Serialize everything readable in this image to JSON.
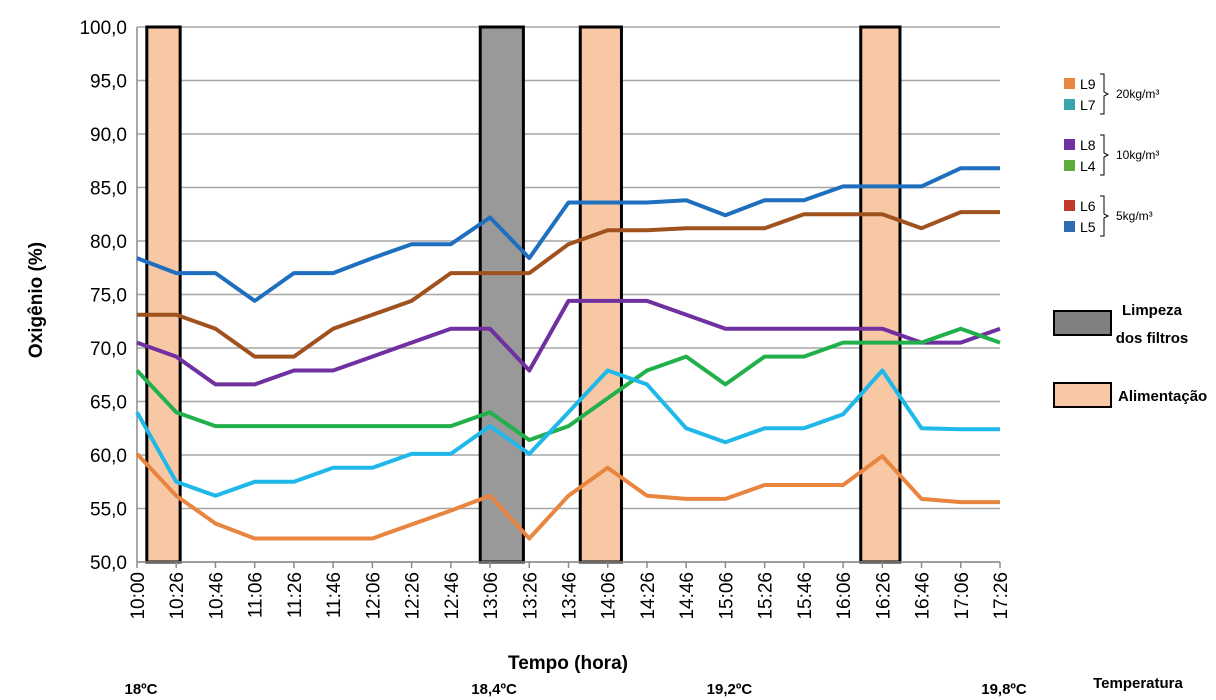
{
  "chart_data": {
    "type": "line",
    "xlabel": "Tempo (hora)",
    "ylabel": "Oxigênio (%)",
    "ylim": [
      50,
      100
    ],
    "ytick_step": 5,
    "ytick_labels": [
      "50,0",
      "55,0",
      "60,0",
      "65,0",
      "70,0",
      "75,0",
      "80,0",
      "85,0",
      "90,0",
      "95,0",
      "100,0"
    ],
    "grid": true,
    "categories": [
      "10:00",
      "10:26",
      "10:46",
      "11:06",
      "11:26",
      "11:46",
      "12:06",
      "12:26",
      "12:46",
      "13:06",
      "13:26",
      "13:46",
      "14:06",
      "14:26",
      "14:46",
      "15:06",
      "15:26",
      "15:46",
      "16:06",
      "16:26",
      "16:46",
      "17:06",
      "17:26"
    ],
    "series": [
      {
        "name": "L5",
        "color": "#1f6fbf",
        "values": [
          78.4,
          77,
          77,
          74.4,
          77,
          77,
          78.4,
          79.7,
          79.7,
          82.2,
          78.4,
          83.6,
          83.6,
          83.6,
          83.8,
          82.4,
          83.8,
          83.8,
          85.1,
          85.1,
          85.1,
          86.8,
          86.8
        ]
      },
      {
        "name": "L6",
        "color": "#a0521e",
        "values": [
          73.1,
          73.1,
          71.8,
          69.2,
          69.2,
          71.8,
          73.1,
          74.4,
          77,
          77,
          77,
          79.7,
          81,
          81,
          81.2,
          81.2,
          81.2,
          82.5,
          82.5,
          82.5,
          81.2,
          82.7,
          82.7
        ]
      },
      {
        "name": "L8",
        "color": "#7030a0",
        "values": [
          70.5,
          69.2,
          66.6,
          66.6,
          67.9,
          67.9,
          69.2,
          70.5,
          71.8,
          71.8,
          67.9,
          74.4,
          74.4,
          74.4,
          73.1,
          71.8,
          71.8,
          71.8,
          71.8,
          71.8,
          70.5,
          70.5,
          71.8
        ]
      },
      {
        "name": "L4",
        "color": "#22b04b",
        "values": [
          67.9,
          64,
          62.7,
          62.7,
          62.7,
          62.7,
          62.7,
          62.7,
          62.7,
          64,
          61.4,
          62.7,
          65.3,
          67.9,
          69.2,
          66.6,
          69.2,
          69.2,
          70.5,
          70.5,
          70.5,
          71.8,
          70.5
        ]
      },
      {
        "name": "L7",
        "color": "#1fb8e8",
        "values": [
          64,
          57.5,
          56.2,
          57.5,
          57.5,
          58.8,
          58.8,
          60.1,
          60.1,
          62.7,
          60.1,
          64,
          67.9,
          66.6,
          62.5,
          61.2,
          62.5,
          62.5,
          63.8,
          67.9,
          62.5,
          62.4,
          62.4
        ]
      },
      {
        "name": "L9",
        "color": "#e8853e",
        "values": [
          60.1,
          56.2,
          53.6,
          52.2,
          52.2,
          52.2,
          52.2,
          53.5,
          54.8,
          56.2,
          52.2,
          56.2,
          58.8,
          56.2,
          55.9,
          55.9,
          57.2,
          57.2,
          57.2,
          59.9,
          55.9,
          55.6,
          55.6
        ]
      }
    ],
    "bands": [
      {
        "kind": "feeding",
        "from": 0.25,
        "to": 1.1,
        "color": "#f8c8a4"
      },
      {
        "kind": "cleaning",
        "from": 8.75,
        "to": 9.85,
        "color": "#999999"
      },
      {
        "kind": "feeding",
        "from": 11.3,
        "to": 12.35,
        "color": "#f8c8a4"
      },
      {
        "kind": "feeding",
        "from": 18.45,
        "to": 19.45,
        "color": "#f8c8a4"
      }
    ],
    "legend": {
      "position": "right",
      "groups": [
        {
          "label": "20kg/m³",
          "items": [
            {
              "name": "L9",
              "color": "#e8853e"
            },
            {
              "name": "L7",
              "color": "#3aa5ad"
            }
          ]
        },
        {
          "label": "10kg/m³",
          "items": [
            {
              "name": "L8",
              "color": "#7030a0"
            },
            {
              "name": "L4",
              "color": "#5cad3a"
            }
          ]
        },
        {
          "label": "5kg/m³",
          "items": [
            {
              "name": "L6",
              "color": "#c0392b"
            },
            {
              "name": "L5",
              "color": "#2e6db4"
            }
          ]
        }
      ],
      "band_items": [
        {
          "label_line1": "Limpeza",
          "label_line2": "dos filtros",
          "color": "#808080"
        },
        {
          "label_line1": "Alimentação",
          "color": "#f8c8a4"
        }
      ]
    },
    "temperatures": [
      {
        "label": "18ºC",
        "at": 0
      },
      {
        "label": "18,4ºC",
        "at": 9
      },
      {
        "label": "19,2ºC",
        "at": 15
      },
      {
        "label": "19,8ºC",
        "at": 22
      }
    ],
    "temperature_title": "Temperatura"
  }
}
